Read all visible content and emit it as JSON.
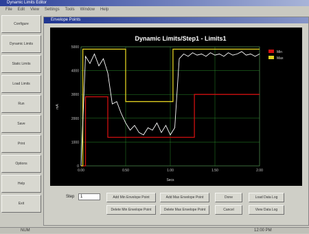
{
  "window": {
    "title": "Dynamic Limits Editor",
    "menu": [
      "File",
      "Edit",
      "View",
      "Settings",
      "Tools",
      "Window",
      "Help"
    ]
  },
  "sidebar": {
    "buttons": [
      "Configure",
      "Dynamic Limits",
      "Static Limits",
      "Load Limits",
      "Run",
      "Save",
      "Print",
      "Options",
      "Help",
      "Exit"
    ]
  },
  "child_window": {
    "title": "Envelope Points"
  },
  "chart_data": {
    "type": "line",
    "title": "Dynamic Limits/Step1 - Limits1",
    "x_label": "Secs",
    "y_label": "mA",
    "xlim": [
      0,
      2.0
    ],
    "ylim": [
      0,
      5000
    ],
    "xticks": [
      {
        "value": 0,
        "label": "0.00"
      },
      {
        "value": 0.5,
        "label": "0.50"
      },
      {
        "value": 1,
        "label": "1.00"
      },
      {
        "value": 1.5,
        "label": "1.50"
      },
      {
        "value": 2,
        "label": "2.00"
      }
    ],
    "yticks": [
      0,
      1000,
      2000,
      3000,
      4000,
      5000
    ],
    "grid": true,
    "legend": "top-right",
    "series": [
      {
        "name": "Min",
        "color": "#d01010",
        "x": [
          0,
          0.05,
          0.05,
          0.3,
          0.3,
          1.27,
          1.27,
          2.0
        ],
        "values": [
          0,
          0,
          2900,
          2900,
          1200,
          1200,
          3000,
          3000
        ]
      },
      {
        "name": "Max",
        "color": "#e0d020",
        "x": [
          0,
          0.02,
          0.02,
          0.5,
          0.5,
          1.03,
          1.03,
          2.0
        ],
        "values": [
          0,
          0,
          4900,
          4900,
          2700,
          2700,
          4900,
          4900
        ]
      },
      {
        "name": "Data",
        "color": "#ffffff",
        "x": [
          0,
          0.05,
          0.1,
          0.15,
          0.2,
          0.25,
          0.3,
          0.35,
          0.4,
          0.45,
          0.5,
          0.55,
          0.6,
          0.65,
          0.7,
          0.75,
          0.8,
          0.85,
          0.9,
          0.95,
          1.0,
          1.05,
          1.1,
          1.15,
          1.2,
          1.25,
          1.3,
          1.35,
          1.4,
          1.45,
          1.5,
          1.55,
          1.6,
          1.65,
          1.7,
          1.75,
          1.8,
          1.85,
          1.9,
          1.95,
          2.0
        ],
        "values": [
          0,
          4600,
          4300,
          4700,
          4200,
          4500,
          3900,
          2600,
          2700,
          2200,
          1800,
          1500,
          1700,
          1400,
          1300,
          1600,
          1500,
          1800,
          1400,
          1700,
          1300,
          1600,
          4500,
          4700,
          4600,
          4750,
          4650,
          4700,
          4600,
          4750,
          4650,
          4700,
          4600,
          4750,
          4650,
          4700,
          4800,
          4650,
          4700,
          4600,
          4700
        ]
      }
    ]
  },
  "controls": {
    "step_label": "Step",
    "step_value": "1",
    "buttons": [
      "Add Min Envelope Point",
      "Add Max Envelope Point",
      "Done",
      "Load Data Log",
      "Delete Min Envelope Point",
      "Delete Max Envelope Point",
      "Cancel",
      "View Data Log"
    ]
  },
  "status": {
    "left": "NUM",
    "right": "12:00 PM"
  }
}
